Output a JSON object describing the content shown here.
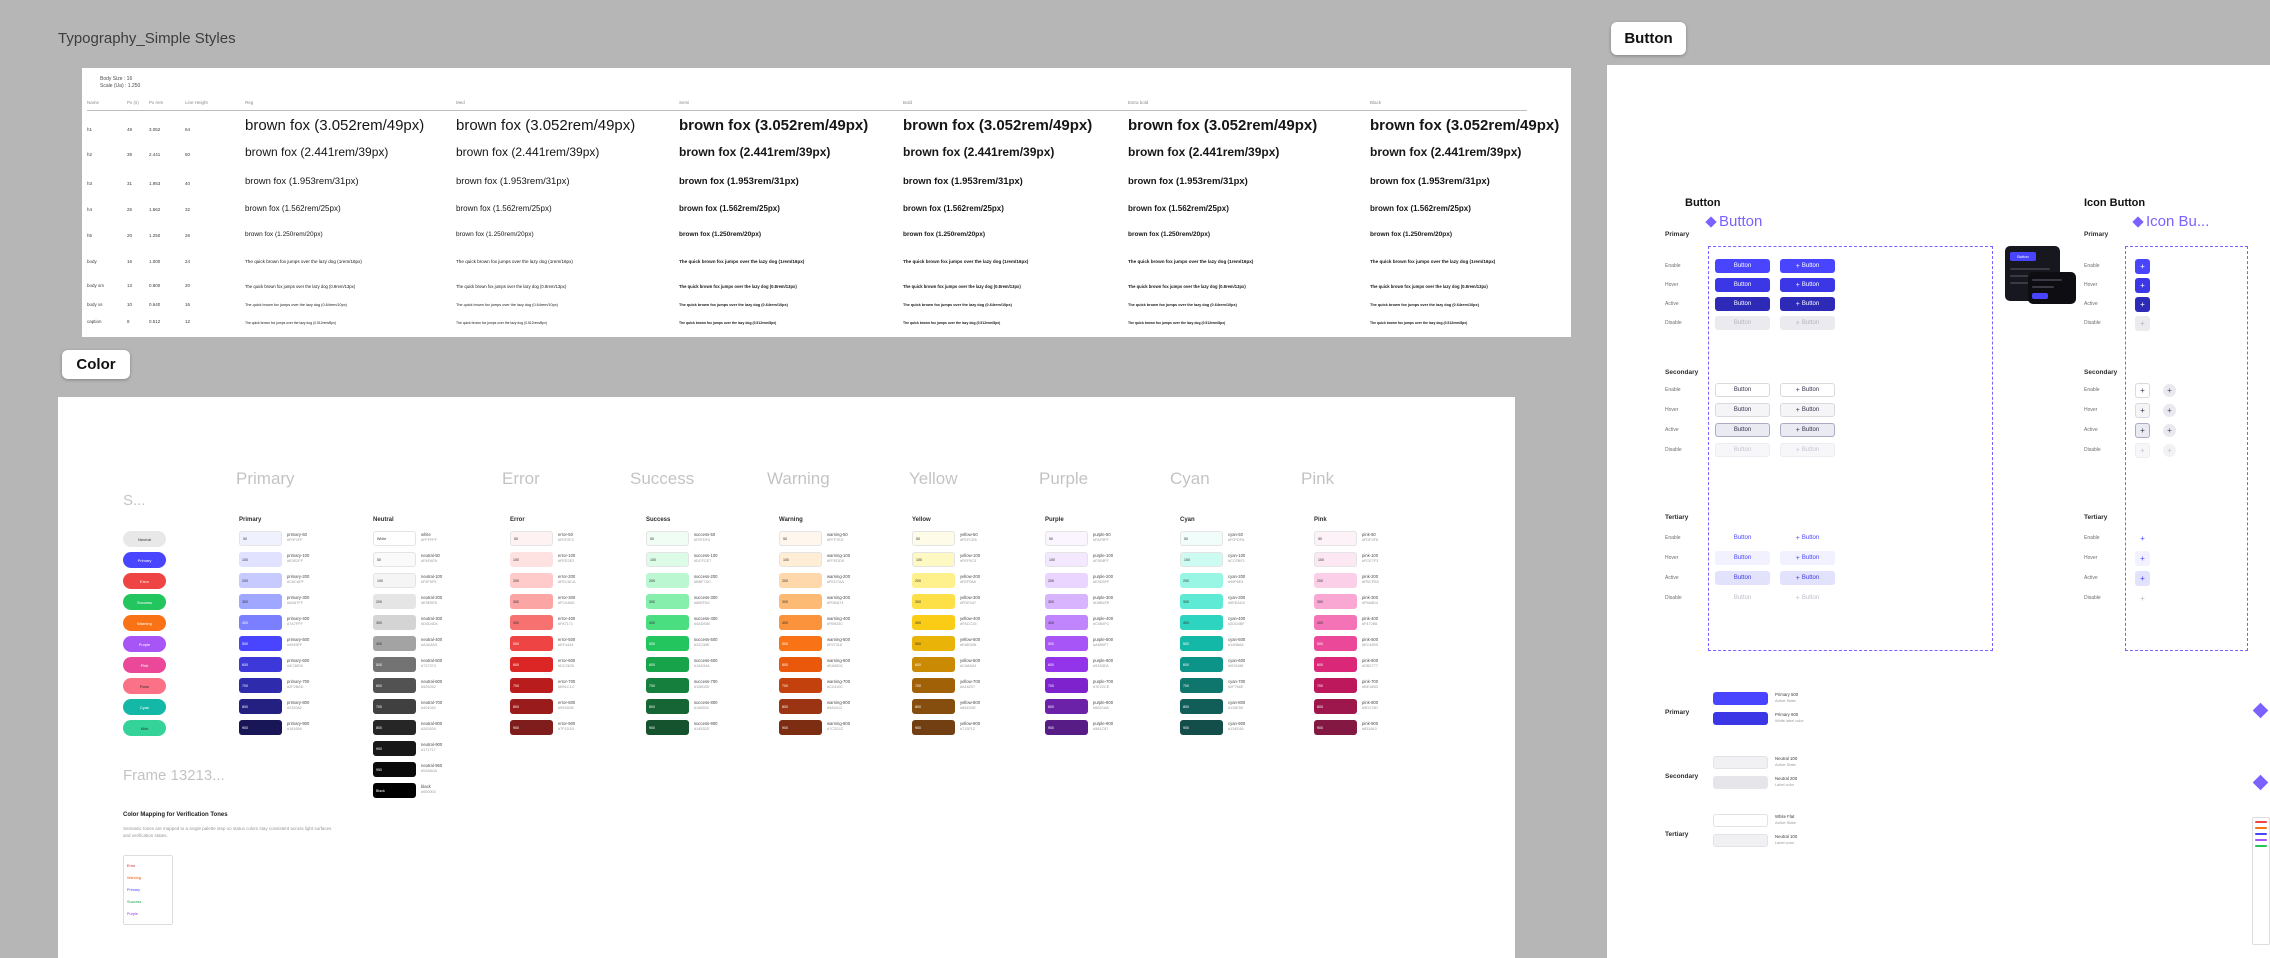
{
  "app": {
    "canvas_bg": "#b6b6b6"
  },
  "typography": {
    "frame_label": "Typography_Simple Styles",
    "meta": [
      "Body Size : 16",
      "Scale (Ua) : 1.250"
    ],
    "meta_headers": [
      "Name",
      "Px (s)",
      "Px rem",
      "Line Height"
    ],
    "weight_headers": [
      "Reg",
      "Med",
      "Semi",
      "Bold",
      "Extra bold",
      "Black"
    ],
    "weights": [
      400,
      500,
      600,
      700,
      800,
      900
    ],
    "rows": [
      {
        "name": "h1",
        "px": "49",
        "rem": "3.052",
        "lh": "64",
        "sample": "brown fox (3.052rem/49px)",
        "size": 15
      },
      {
        "name": "h2",
        "px": "39",
        "rem": "2.441",
        "lh": "50",
        "sample": "brown fox (2.441rem/39px)",
        "size": 12
      },
      {
        "name": "h3",
        "px": "31",
        "rem": "1.953",
        "lh": "40",
        "sample": "brown fox (1.953rem/31px)",
        "size": 9.5
      },
      {
        "name": "h4",
        "px": "25",
        "rem": "1.562",
        "lh": "32",
        "sample": "brown fox (1.562rem/25px)",
        "size": 8
      },
      {
        "name": "h5",
        "px": "20",
        "rem": "1.250",
        "lh": "26",
        "sample": "brown fox (1.250rem/20px)",
        "size": 6.5
      },
      {
        "name": "body",
        "px": "16",
        "rem": "1.000",
        "lh": "24",
        "sample": "The quick brown fox jumps over the lazy dog (1rem/16px)",
        "size": 4.6
      },
      {
        "name": "body sm",
        "px": "13",
        "rem": "0.800",
        "lh": "20",
        "sample": "The quick brown fox jumps over the lazy dog (0.8rem/13px)",
        "size": 4.2
      },
      {
        "name": "body xs",
        "px": "10",
        "rem": "0.640",
        "lh": "16",
        "sample": "The quick brown fox jumps over the lazy dog (0.64rem/10px)",
        "size": 3.8
      },
      {
        "name": "caption",
        "px": "8",
        "rem": "0.512",
        "lh": "12",
        "sample": "The quick brown fox jumps over the lazy dog (0.512rem/8px)",
        "size": 3.4
      }
    ]
  },
  "color": {
    "frame_label": "Color",
    "ghost_labels": [
      "Primary",
      "Error",
      "Success",
      "Warning",
      "Yellow",
      "Purple",
      "Cyan",
      "Pink"
    ],
    "left_ghosts": [
      "S...",
      "Frame 13213..."
    ],
    "semantic_pills": [
      {
        "label": "Neutral",
        "color": "#E8E8E8"
      },
      {
        "label": "Primary",
        "color": "#4945FF"
      },
      {
        "label": "Error",
        "color": "#EF4444"
      },
      {
        "label": "Success",
        "color": "#22C55E"
      },
      {
        "label": "Warning",
        "color": "#F97316"
      },
      {
        "label": "Purple",
        "color": "#A855F7"
      },
      {
        "label": "Pink",
        "color": "#EC4899"
      },
      {
        "label": "Rose",
        "color": "#FB7185"
      },
      {
        "label": "Cyan",
        "color": "#14B8A6"
      },
      {
        "label": "Mint",
        "color": "#34D399"
      }
    ],
    "palettes": [
      {
        "name": "Primary",
        "key": "primary",
        "swatches": [
          [
            "50",
            "#F0F1FF"
          ],
          [
            "100",
            "#E0E2FF"
          ],
          [
            "200",
            "#C6CAFF"
          ],
          [
            "300",
            "#A0A7FF"
          ],
          [
            "400",
            "#7A7FFF"
          ],
          [
            "500",
            "#4945FF"
          ],
          [
            "600",
            "#3C38D9"
          ],
          [
            "700",
            "#2F2BAD"
          ],
          [
            "800",
            "#232082"
          ],
          [
            "900",
            "#181656"
          ]
        ]
      },
      {
        "name": "Neutral",
        "key": "neutral",
        "swatches": [
          [
            "White",
            "#FFFFFF"
          ],
          [
            "50",
            "#FAFAFA"
          ],
          [
            "100",
            "#F5F5F5"
          ],
          [
            "200",
            "#E5E5E5"
          ],
          [
            "300",
            "#D4D4D4"
          ],
          [
            "400",
            "#A3A3A3"
          ],
          [
            "500",
            "#737373"
          ],
          [
            "600",
            "#525252"
          ],
          [
            "700",
            "#404040"
          ],
          [
            "800",
            "#262626"
          ],
          [
            "900",
            "#171717"
          ],
          [
            "950",
            "#0A0A0A"
          ],
          [
            "Black",
            "#000000"
          ]
        ]
      },
      {
        "name": "Error",
        "key": "error",
        "swatches": [
          [
            "50",
            "#FEF2F2"
          ],
          [
            "100",
            "#FEE2E2"
          ],
          [
            "200",
            "#FECACA"
          ],
          [
            "300",
            "#FCA5A5"
          ],
          [
            "400",
            "#F87171"
          ],
          [
            "500",
            "#EF4444"
          ],
          [
            "600",
            "#DC2626"
          ],
          [
            "700",
            "#B91C1C"
          ],
          [
            "800",
            "#991B1B"
          ],
          [
            "900",
            "#7F1D1D"
          ]
        ]
      },
      {
        "name": "Success",
        "key": "success",
        "swatches": [
          [
            "50",
            "#F0FDF4"
          ],
          [
            "100",
            "#DCFCE7"
          ],
          [
            "200",
            "#BBF7D0"
          ],
          [
            "300",
            "#86EFAC"
          ],
          [
            "400",
            "#4ADE80"
          ],
          [
            "500",
            "#22C55E"
          ],
          [
            "600",
            "#16A34A"
          ],
          [
            "700",
            "#15803D"
          ],
          [
            "800",
            "#166534"
          ],
          [
            "900",
            "#14532D"
          ]
        ]
      },
      {
        "name": "Warning",
        "key": "warning",
        "swatches": [
          [
            "50",
            "#FFF7ED"
          ],
          [
            "100",
            "#FFEDD5"
          ],
          [
            "200",
            "#FED7AA"
          ],
          [
            "300",
            "#FDBA74"
          ],
          [
            "400",
            "#FB923C"
          ],
          [
            "500",
            "#F97316"
          ],
          [
            "600",
            "#EA580C"
          ],
          [
            "700",
            "#C2410C"
          ],
          [
            "800",
            "#9A3412"
          ],
          [
            "900",
            "#7C2D12"
          ]
        ]
      },
      {
        "name": "Yellow",
        "key": "yellow",
        "swatches": [
          [
            "50",
            "#FEFCE8"
          ],
          [
            "100",
            "#FEF9C3"
          ],
          [
            "200",
            "#FEF08A"
          ],
          [
            "300",
            "#FDE047"
          ],
          [
            "400",
            "#FACC15"
          ],
          [
            "500",
            "#EAB308"
          ],
          [
            "600",
            "#CA8A04"
          ],
          [
            "700",
            "#A16207"
          ],
          [
            "800",
            "#854D0E"
          ],
          [
            "900",
            "#713F12"
          ]
        ]
      },
      {
        "name": "Purple",
        "key": "purple",
        "swatches": [
          [
            "50",
            "#FAF5FF"
          ],
          [
            "100",
            "#F3E8FF"
          ],
          [
            "200",
            "#E9D5FF"
          ],
          [
            "300",
            "#D8B4FE"
          ],
          [
            "400",
            "#C084FC"
          ],
          [
            "500",
            "#A855F7"
          ],
          [
            "600",
            "#9333EA"
          ],
          [
            "700",
            "#7E22CE"
          ],
          [
            "800",
            "#6B21A8"
          ],
          [
            "900",
            "#581C87"
          ]
        ]
      },
      {
        "name": "Cyan",
        "key": "cyan",
        "swatches": [
          [
            "50",
            "#F0FDFA"
          ],
          [
            "100",
            "#CCFBF1"
          ],
          [
            "200",
            "#99F6E4"
          ],
          [
            "300",
            "#5EEAD4"
          ],
          [
            "400",
            "#2DD4BF"
          ],
          [
            "500",
            "#14B8A6"
          ],
          [
            "600",
            "#0D9488"
          ],
          [
            "700",
            "#0F766E"
          ],
          [
            "800",
            "#115E59"
          ],
          [
            "900",
            "#134E4A"
          ]
        ]
      },
      {
        "name": "Pink",
        "key": "pink",
        "swatches": [
          [
            "50",
            "#FDF2F8"
          ],
          [
            "100",
            "#FCE7F3"
          ],
          [
            "200",
            "#FBCFE8"
          ],
          [
            "300",
            "#F9A8D4"
          ],
          [
            "400",
            "#F472B6"
          ],
          [
            "500",
            "#EC4899"
          ],
          [
            "600",
            "#DB2777"
          ],
          [
            "700",
            "#BE185D"
          ],
          [
            "800",
            "#9D174D"
          ],
          [
            "900",
            "#831843"
          ]
        ]
      }
    ],
    "note": {
      "title": "Color Mapping for Verification Tones",
      "body": "Semantic tones are mapped to a single palette step so status colors stay consistent across light surfaces and verification states.",
      "box_lines": [
        {
          "label": "Error",
          "color": "#DC2626"
        },
        {
          "label": "Warning",
          "color": "#EA580C"
        },
        {
          "label": "Primary",
          "color": "#4945FF"
        },
        {
          "label": "Success",
          "color": "#16A34A"
        },
        {
          "label": "Purple",
          "color": "#9333EA"
        }
      ]
    }
  },
  "buttons": {
    "frame_label": "Button",
    "section_headers": [
      "Button",
      "Icon Button"
    ],
    "component_titles": [
      "Button",
      "Icon Bu..."
    ],
    "states": [
      "Enable",
      "Hover",
      "Active",
      "Disable"
    ],
    "groups": [
      "Primary",
      "Secondary",
      "Tertiary"
    ],
    "button_label": "Button",
    "icon_glyph": "+",
    "accent": "#7B61FF",
    "styles": {
      "Primary": {
        "Enable": {
          "bg": "#4945FF",
          "fg": "#FFFFFF"
        },
        "Hover": {
          "bg": "#3B37E6",
          "fg": "#FFFFFF"
        },
        "Active": {
          "bg": "#2D2AB8",
          "fg": "#FFFFFF"
        },
        "Disable": {
          "bg": "#EBEBEF",
          "fg": "#B3B3BD"
        }
      },
      "Secondary": {
        "Enable": {
          "bg": "#FFFFFF",
          "fg": "#33334D",
          "bd": "#D9D9E0"
        },
        "Hover": {
          "bg": "#F5F5F8",
          "fg": "#33334D",
          "bd": "#D9D9E0"
        },
        "Active": {
          "bg": "#EAEAF2",
          "fg": "#33334D",
          "bd": "#ABABC4"
        },
        "Disable": {
          "bg": "#F7F7FA",
          "fg": "#C4C4D0",
          "bd": "#ECECF2"
        }
      },
      "Tertiary": {
        "Enable": {
          "bg": "transparent",
          "fg": "#4945FF"
        },
        "Hover": {
          "bg": "#F1F1FF",
          "fg": "#4945FF"
        },
        "Active": {
          "bg": "#E2E2FD",
          "fg": "#3B37E6"
        },
        "Disable": {
          "bg": "transparent",
          "fg": "#BBBBC9"
        }
      }
    },
    "mapping": [
      {
        "group": "Primary",
        "rows": [
          {
            "color": "#4945FF",
            "line1": "Primary 500",
            "line2": "Active State"
          },
          {
            "color": "#3B37E6",
            "line1": "Primary 600",
            "line2": "White label color"
          }
        ]
      },
      {
        "group": "Secondary",
        "rows": [
          {
            "color": "#F1F1F4",
            "line1": "Neutral 100",
            "line2": "Active State"
          },
          {
            "color": "#E5E5EA",
            "line1": "Neutral 200",
            "line2": "Label color"
          }
        ]
      },
      {
        "group": "Tertiary",
        "rows": [
          {
            "color": "#FFFFFF",
            "line1": "White Flat",
            "line2": "Active State"
          },
          {
            "color": "#F1F1F4",
            "line1": "Neutral 100",
            "line2": "Label color"
          }
        ]
      }
    ],
    "dark_card_label": "Button",
    "strip_colors": [
      "#EF4444",
      "#F97316",
      "#4945FF",
      "#A855F7",
      "#22C55E"
    ]
  }
}
